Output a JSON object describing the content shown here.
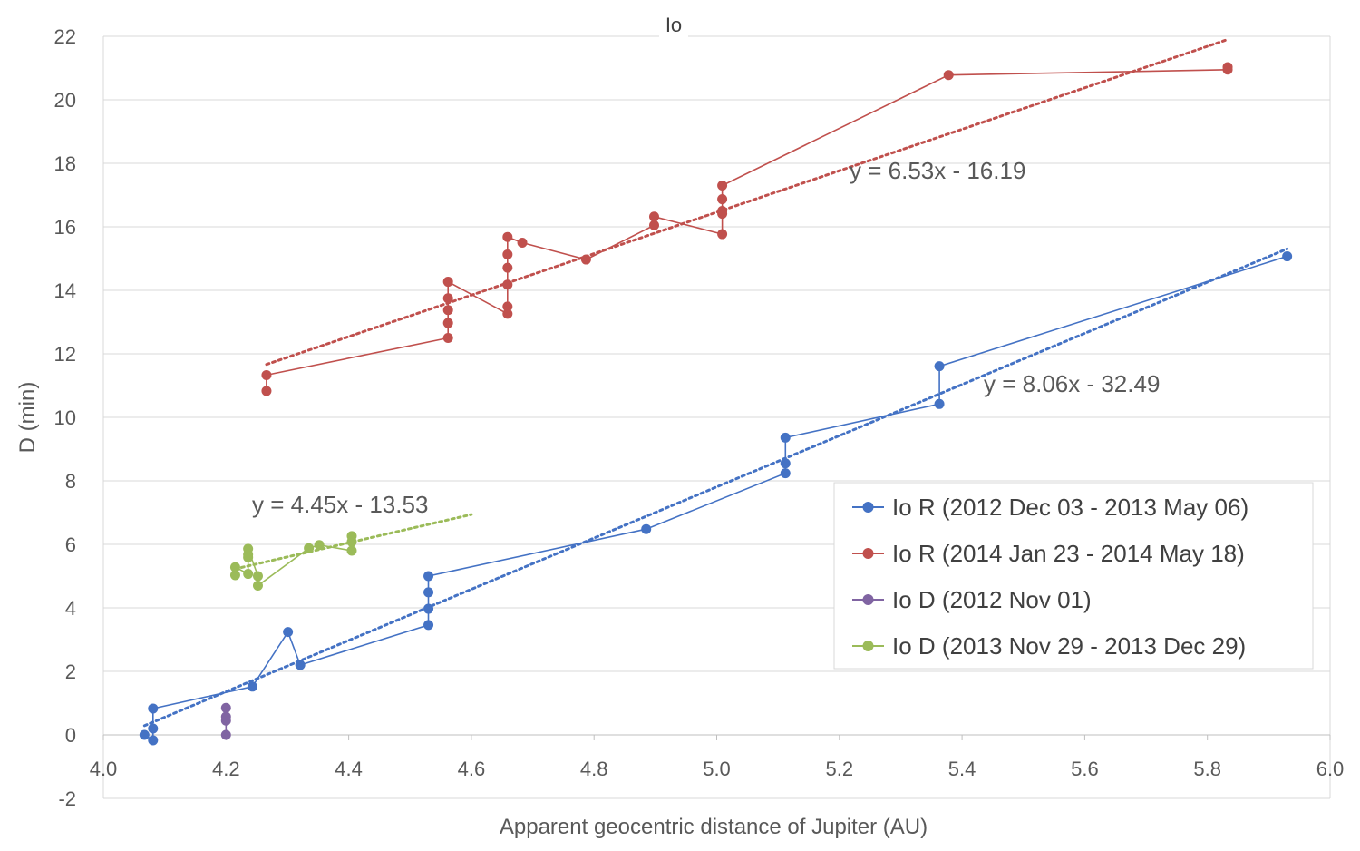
{
  "chart_data": {
    "type": "scatter",
    "title": "Io",
    "xlabel": "Apparent geocentric distance of Jupiter (AU)",
    "ylabel": "D (min)",
    "xlim": [
      4.0,
      6.0
    ],
    "ylim": [
      -2,
      22
    ],
    "x_ticks": [
      "4.0",
      "4.2",
      "4.4",
      "4.6",
      "4.8",
      "5.0",
      "5.2",
      "5.4",
      "5.6",
      "5.8",
      "6.0"
    ],
    "y_ticks": [
      "-2",
      "0",
      "2",
      "4",
      "6",
      "8",
      "10",
      "12",
      "14",
      "16",
      "18",
      "20",
      "22"
    ],
    "grid": "horizontal",
    "legend_position": "bottom-right",
    "series": [
      {
        "name": "Io R (2012 Dec 03 - 2013 May 06)",
        "color": "#4472c4",
        "points": [
          [
            4.067,
            0.0
          ],
          [
            4.081,
            -0.17
          ],
          [
            4.081,
            0.2
          ],
          [
            4.081,
            0.83
          ],
          [
            4.243,
            1.52
          ],
          [
            4.301,
            3.24
          ],
          [
            4.321,
            2.2
          ],
          [
            4.53,
            3.46
          ],
          [
            4.53,
            3.97
          ],
          [
            4.53,
            4.49
          ],
          [
            4.53,
            5.0
          ],
          [
            4.885,
            6.48
          ],
          [
            5.112,
            8.24
          ],
          [
            5.112,
            8.55
          ],
          [
            5.112,
            9.36
          ],
          [
            5.363,
            10.42
          ],
          [
            5.363,
            11.61
          ],
          [
            5.93,
            15.07
          ]
        ],
        "trendline": {
          "label": "y = 8.06x - 32.49",
          "x_range": [
            4.067,
            5.93
          ],
          "slope": 8.06,
          "intercept": -32.49
        }
      },
      {
        "name": "Io R (2014 Jan 23 - 2014 May 18)",
        "color": "#c0504d",
        "points": [
          [
            4.266,
            10.83
          ],
          [
            4.266,
            11.33
          ],
          [
            4.562,
            12.5
          ],
          [
            4.562,
            12.97
          ],
          [
            4.562,
            13.38
          ],
          [
            4.562,
            13.75
          ],
          [
            4.562,
            14.27
          ],
          [
            4.659,
            13.26
          ],
          [
            4.659,
            13.49
          ],
          [
            4.659,
            14.18
          ],
          [
            4.659,
            14.71
          ],
          [
            4.659,
            15.13
          ],
          [
            4.659,
            15.68
          ],
          [
            4.683,
            15.5
          ],
          [
            4.787,
            14.97
          ],
          [
            4.898,
            16.05
          ],
          [
            4.898,
            16.32
          ],
          [
            5.009,
            15.77
          ],
          [
            5.009,
            16.41
          ],
          [
            5.009,
            16.5
          ],
          [
            5.009,
            16.87
          ],
          [
            5.009,
            17.3
          ],
          [
            5.378,
            20.78
          ],
          [
            5.833,
            20.95
          ],
          [
            5.833,
            21.03
          ]
        ],
        "trendline": {
          "label": "y = 6.53x - 16.19",
          "x_range": [
            4.266,
            5.833
          ],
          "slope": 6.53,
          "intercept": -16.19
        }
      },
      {
        "name": "Io D (2012 Nov 01)",
        "color": "#8064a2",
        "points": [
          [
            4.2,
            0.0
          ],
          [
            4.2,
            0.45
          ],
          [
            4.2,
            0.57
          ],
          [
            4.2,
            0.85
          ]
        ]
      },
      {
        "name": "Io D (2013 Nov 29 - 2013 Dec 29)",
        "color": "#9bbb59",
        "points": [
          [
            4.215,
            5.03
          ],
          [
            4.215,
            5.28
          ],
          [
            4.236,
            5.07
          ],
          [
            4.236,
            5.59
          ],
          [
            4.236,
            5.68
          ],
          [
            4.236,
            5.86
          ],
          [
            4.252,
            5.0
          ],
          [
            4.252,
            4.7
          ],
          [
            4.335,
            5.88
          ],
          [
            4.352,
            5.98
          ],
          [
            4.405,
            5.8
          ],
          [
            4.405,
            6.08
          ],
          [
            4.405,
            6.26
          ]
        ],
        "trendline": {
          "label": "y = 4.45x - 13.53",
          "x_range": [
            4.215,
            4.6
          ],
          "slope": 4.45,
          "intercept": -13.53
        }
      }
    ]
  }
}
